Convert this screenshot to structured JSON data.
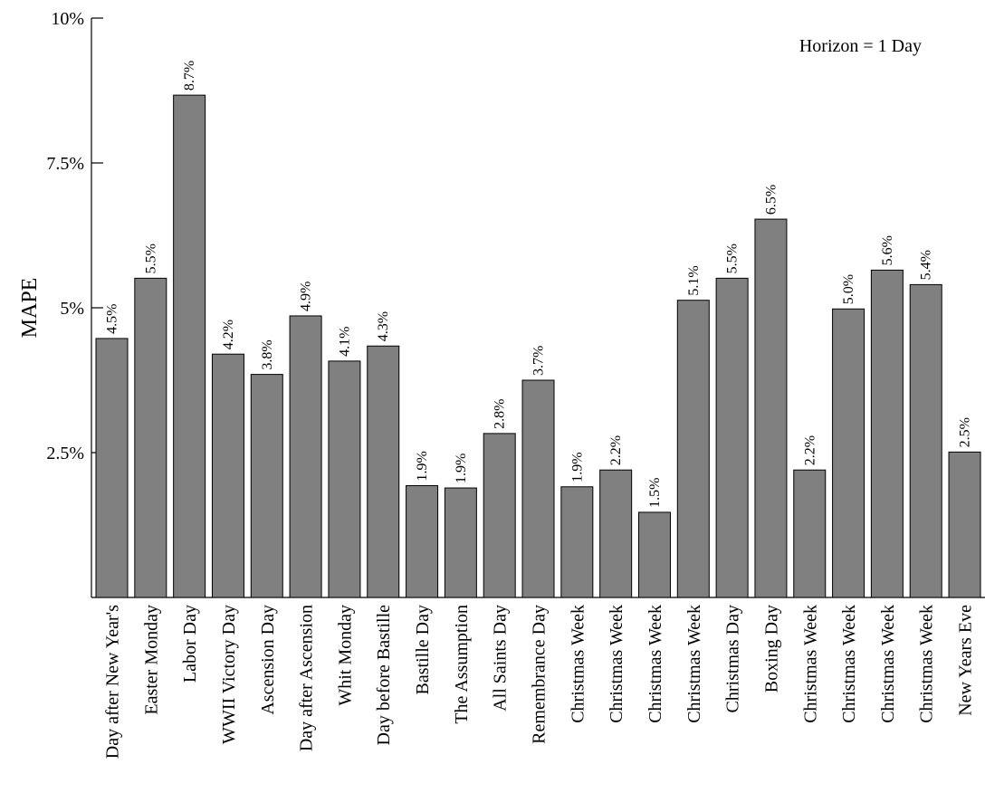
{
  "chart_data": {
    "type": "bar",
    "title": "",
    "ylabel": "MAPE",
    "xlabel": "",
    "annotation": "Horizon = 1 Day",
    "ylim": [
      0,
      10
    ],
    "yticks": [
      2.5,
      5,
      7.5,
      10
    ],
    "ytick_labels": [
      "2.5%",
      "5%",
      "7.5%",
      "10%"
    ],
    "bar_color": "#808080",
    "categories": [
      "Day after New Year's",
      "Easter Monday",
      "Labor Day",
      "WWII Victory Day",
      "Ascension Day",
      "Day after Ascension",
      "Whit Monday",
      "Day before Bastille",
      "Bastille Day",
      "The Assumption",
      "All Saints Day",
      "Remembrance Day",
      "Christmas Week",
      "Christmas Week",
      "Christmas Week",
      "Christmas Week",
      "Christmas Day",
      "Boxing Day",
      "Christmas Week",
      "Christmas Week",
      "Christmas Week",
      "Christmas Week",
      "New Years Eve"
    ],
    "values": [
      4.47,
      5.51,
      8.67,
      4.2,
      3.85,
      4.86,
      4.08,
      4.34,
      1.93,
      1.89,
      2.83,
      3.75,
      1.91,
      2.2,
      1.47,
      5.13,
      5.51,
      6.53,
      2.2,
      4.98,
      5.65,
      5.4,
      2.51
    ],
    "value_labels": [
      "4.5%",
      "5.5%",
      "8.7%",
      "4.2%",
      "3.8%",
      "4.9%",
      "4.1%",
      "4.3%",
      "1.9%",
      "1.9%",
      "2.8%",
      "3.7%",
      "1.9%",
      "2.2%",
      "1.5%",
      "5.1%",
      "5.5%",
      "6.5%",
      "2.2%",
      "5.0%",
      "5.6%",
      "5.4%",
      "2.5%"
    ]
  }
}
